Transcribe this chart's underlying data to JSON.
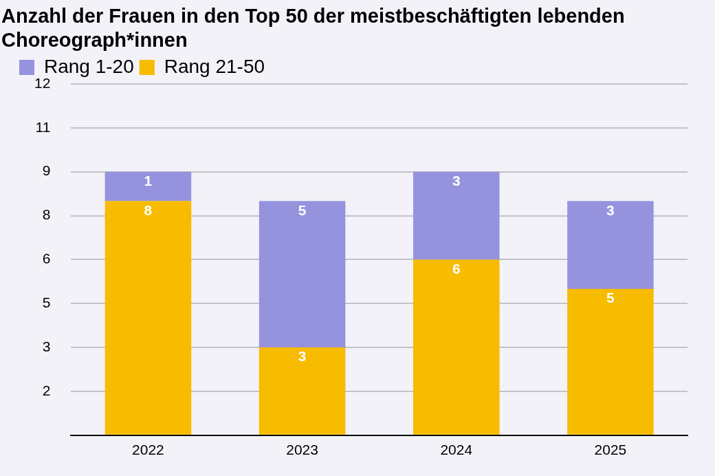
{
  "chart_data": {
    "type": "bar",
    "title": "Anzahl der Frauen in den Top 50 der meistbeschäftigten lebenden Choreograph*innen",
    "categories": [
      "2022",
      "2023",
      "2024",
      "2025"
    ],
    "series": [
      {
        "name": "Rang 21-50",
        "color": "#f7bb00",
        "values": [
          8,
          3,
          6,
          5
        ]
      },
      {
        "name": "Rang 1-20",
        "color": "#9593de",
        "values": [
          1,
          5,
          3,
          3
        ]
      }
    ],
    "stacked": true,
    "data_labels": true,
    "legend": "top left",
    "grid": "y",
    "ylim": [
      0,
      12
    ],
    "yticks": [
      {
        "value": 0,
        "label": null
      },
      {
        "value": 1.5,
        "label": "2"
      },
      {
        "value": 3,
        "label": "3"
      },
      {
        "value": 4.5,
        "label": "5"
      },
      {
        "value": 6,
        "label": "6"
      },
      {
        "value": 7.5,
        "label": "8"
      },
      {
        "value": 9,
        "label": "9"
      },
      {
        "value": 10.5,
        "label": "11"
      },
      {
        "value": 12,
        "label": "12"
      }
    ]
  }
}
